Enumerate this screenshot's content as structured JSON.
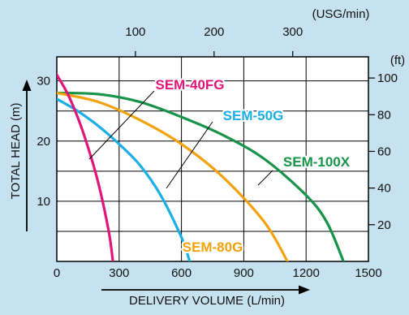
{
  "chart_data": {
    "type": "line",
    "xlabel": "DELIVERY VOLUME (L/min)",
    "ylabel": "TOTAL HEAD (m)",
    "x_ticks": [
      "0",
      "300",
      "600",
      "900",
      "1200",
      "1500"
    ],
    "y_ticks": [
      "10",
      "20",
      "30"
    ],
    "xlim": [
      0,
      1500
    ],
    "ylim": [
      0,
      34
    ],
    "grid": true,
    "top_axis": {
      "label": "(USG/min)",
      "ticks": [
        "100",
        "200",
        "300"
      ],
      "tick_values_lpm": [
        378.5,
        757.1,
        1135.6
      ]
    },
    "right_axis": {
      "label": "(ft)",
      "ticks": [
        "100",
        "80",
        "60",
        "40",
        "20"
      ],
      "tick_values_m": [
        30.48,
        24.38,
        18.29,
        12.19,
        6.1
      ]
    },
    "series": [
      {
        "name": "SEM-40FG",
        "color": "#e0157a",
        "x": [
          0,
          50,
          100,
          150,
          200,
          250,
          270
        ],
        "y": [
          31,
          28,
          24,
          19,
          13,
          5,
          0
        ]
      },
      {
        "name": "SEM-50G",
        "color": "#1aaee5",
        "x": [
          0,
          100,
          200,
          300,
          400,
          500,
          600,
          640
        ],
        "y": [
          27,
          25,
          22.5,
          19.5,
          16,
          11,
          4,
          0
        ]
      },
      {
        "name": "SEM-80G",
        "color": "#f2a20c",
        "x": [
          0,
          200,
          400,
          600,
          800,
          1000,
          1110
        ],
        "y": [
          28,
          26.5,
          23.5,
          19.5,
          14,
          6.5,
          0
        ]
      },
      {
        "name": "SEM-100X",
        "color": "#17944a",
        "x": [
          0,
          200,
          400,
          600,
          800,
          1000,
          1200,
          1300,
          1380
        ],
        "y": [
          28,
          27.8,
          26.5,
          24,
          21,
          17,
          11,
          6.5,
          0
        ]
      }
    ]
  }
}
